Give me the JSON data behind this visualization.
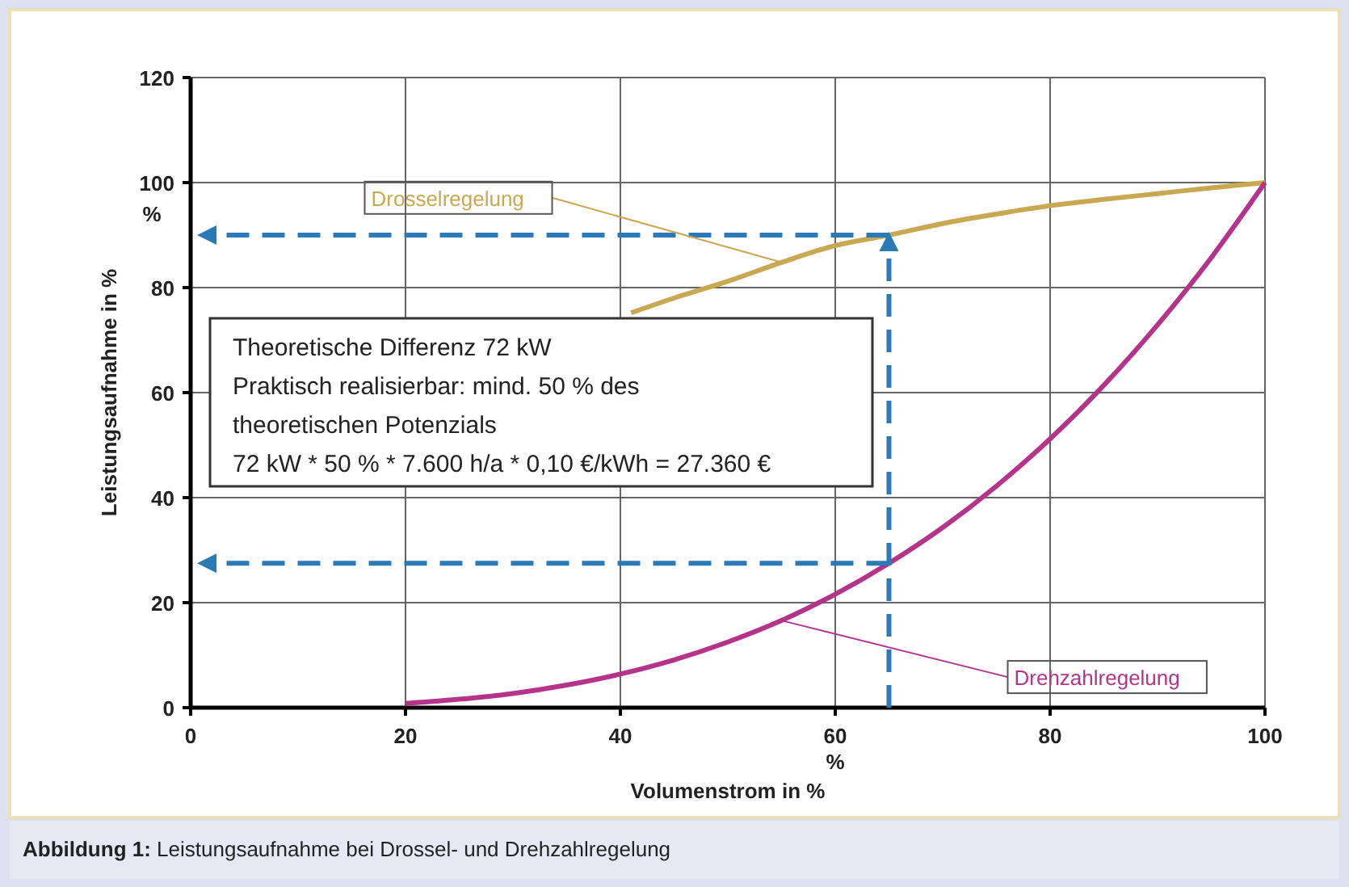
{
  "chart_data": {
    "type": "line",
    "title": "Abbildung 1: Leistungsaufnahme bei Drossel- und Drehzahlregelung",
    "xlabel": "Volumenstrom in %",
    "ylabel": "Leistungsaufnahme in %",
    "xlim": [
      0,
      100
    ],
    "xticks": [
      0,
      20,
      40,
      60,
      80,
      100
    ],
    "ylim": [
      0,
      120
    ],
    "yticks": [
      0,
      20,
      40,
      60,
      80,
      100,
      120
    ],
    "grid": true,
    "legend": false,
    "marker": "none",
    "line_style": "solid",
    "series": [
      {
        "name": "Drosselregelung",
        "color": "#c8a850",
        "x": [
          41,
          45,
          50,
          55,
          60,
          65,
          70,
          75,
          80,
          85,
          90,
          95,
          100
        ],
        "values": [
          75.2,
          78,
          81.2,
          84.8,
          88,
          90,
          92.2,
          94,
          95.6,
          96.8,
          97.9,
          99,
          100
        ]
      },
      {
        "name": "Drehzahlregelung",
        "color": "#b5338a",
        "x": [
          20,
          25,
          30,
          35,
          40,
          45,
          50,
          55,
          60,
          65,
          70,
          75,
          80,
          85,
          90,
          95,
          100
        ],
        "values": [
          0.8,
          1.6,
          2.7,
          4.3,
          6.4,
          9.1,
          12.5,
          16.6,
          21.6,
          27.5,
          34.3,
          42.2,
          51.2,
          61.4,
          72.9,
          85.7,
          100
        ]
      }
    ],
    "ref_lines": [
      {
        "axis": "x",
        "value": 65,
        "color": "#2a7ab8",
        "line_style": "dashed"
      },
      {
        "axis": "y",
        "value": 90,
        "color": "#2a7ab8",
        "line_style": "dashed"
      },
      {
        "axis": "y",
        "value": 27.5,
        "color": "#2a7ab8",
        "line_style": "dashed"
      }
    ],
    "annotations": [
      "Theoretische Differenz 72 kW\nPraktisch realisierbar: mind.  50 % des\ntheoretischen Potenzials\n72 kW * 50 % * 7.600 h/a * 0,10 €/kWh = 27.360 €",
      "%",
      "%"
    ]
  }
}
